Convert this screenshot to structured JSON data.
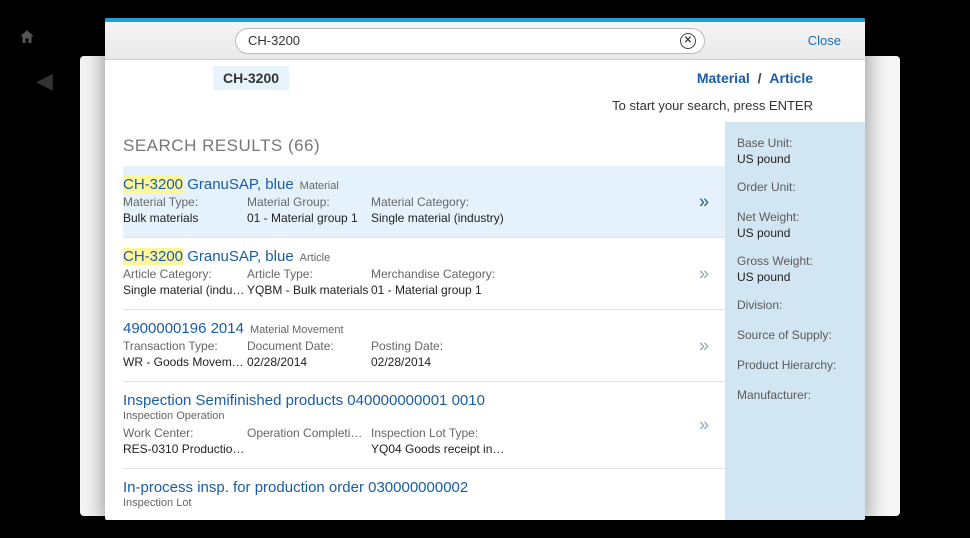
{
  "header": {
    "search_value": "CH-3200",
    "close_label": "Close"
  },
  "subheader": {
    "chip": "CH-3200",
    "filter1": "Material",
    "filter2": "Article",
    "separator": "/",
    "hint": "To start your search, press ENTER"
  },
  "results_heading": "SEARCH RESULTS  (66)",
  "results": [
    {
      "title_hl": "CH-3200",
      "title_rest": " GranuSAP, blue",
      "tag": "Material",
      "selected": true,
      "fields": [
        {
          "label": "Material Type:",
          "value": "Bulk materials"
        },
        {
          "label": "Material Group:",
          "value": "01 - Material group 1"
        },
        {
          "label": "Material Category:",
          "value": "Single material (industry)",
          "wide": true
        }
      ]
    },
    {
      "title_hl": "CH-3200",
      "title_rest": " GranuSAP, blue",
      "tag": "Article",
      "fields": [
        {
          "label": "Article Category:",
          "value": "Single material (indu…"
        },
        {
          "label": "Article Type:",
          "value": "YQBM - Bulk materials"
        },
        {
          "label": "Merchandise Category:",
          "value": "01 - Material group 1",
          "wide": true
        }
      ]
    },
    {
      "title_plain": "4900000196 2014",
      "tag": "Material Movement",
      "fields": [
        {
          "label": "Transaction Type:",
          "value": "WR - Goods Movem…"
        },
        {
          "label": "Document Date:",
          "value": "02/28/2014"
        },
        {
          "label": "Posting Date:",
          "value": "02/28/2014"
        }
      ]
    },
    {
      "title_plain": "Inspection Semifinished products 040000000001 0010",
      "subtitle": "Inspection Operation",
      "fields": [
        {
          "label": "Work Center:",
          "value": "RES-0310 Productio…"
        },
        {
          "label": "Operation Completi…",
          "value": ""
        },
        {
          "label": "Inspection Lot Type:",
          "value": "YQ04 Goods receipt in…",
          "wide": true
        }
      ]
    },
    {
      "title_plain": "In-process insp. for production order 030000000002",
      "subtitle": "Inspection Lot",
      "fields": []
    }
  ],
  "side": [
    {
      "label": "Base Unit:",
      "value": "US pound"
    },
    {
      "label": "Order Unit:",
      "value": ""
    },
    {
      "label": "Net Weight:",
      "value": "US pound"
    },
    {
      "label": "Gross Weight:",
      "value": "US pound"
    },
    {
      "label": "Division:",
      "value": ""
    },
    {
      "label": "Source of Supply:",
      "value": ""
    },
    {
      "label": "Product Hierarchy:",
      "value": ""
    },
    {
      "label": "Manufacturer:",
      "value": ""
    }
  ]
}
